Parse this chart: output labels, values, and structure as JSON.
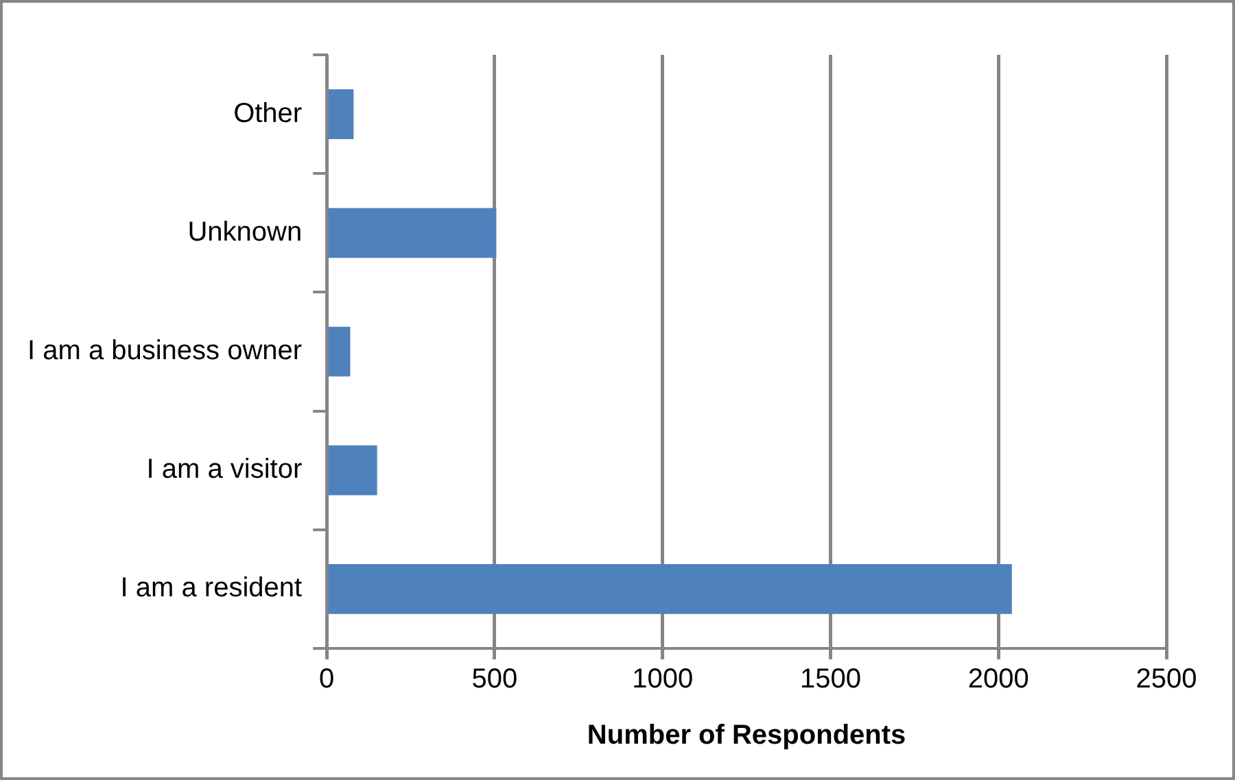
{
  "chart_data": {
    "type": "bar",
    "orientation": "horizontal",
    "xlabel": "Number of Respondents",
    "categories": [
      "Other",
      "Unknown",
      "I am a business owner",
      "I am a visitor",
      "I am a resident"
    ],
    "values": [
      80,
      505,
      70,
      150,
      2040
    ],
    "color": "#4f81bd",
    "xlim": [
      0,
      2500
    ],
    "xticks": [
      0,
      500,
      1000,
      1500,
      2000,
      2500
    ],
    "grid": "x",
    "legend": false
  }
}
